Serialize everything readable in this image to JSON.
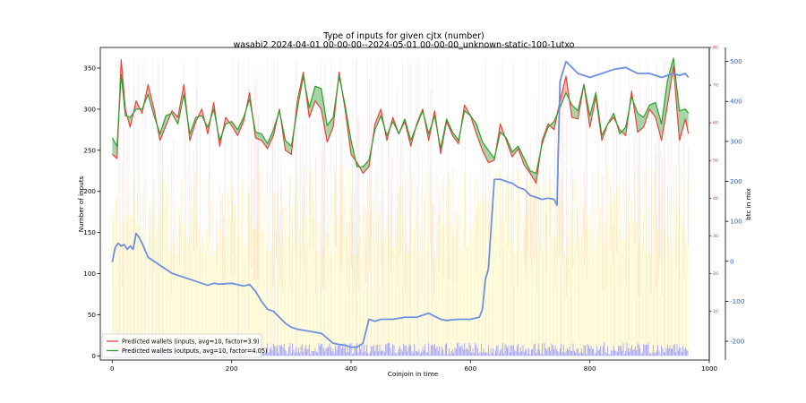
{
  "chart_data": {
    "type": "line",
    "title": "Type of inputs for given cjtx (number)",
    "subtitle": "wasabi2 2024-04-01 00-00-00--2024-05-01 00-00-00_unknown-static-100-1utxo",
    "xlabel": "Coinjoin in time",
    "ylabel": "Number of inputs",
    "ylabel_right": "btc in mix",
    "xlim": [
      -20,
      1000
    ],
    "ylim": [
      -5,
      375
    ],
    "ylim_right_btc": [
      -247,
      535
    ],
    "ylim_right_red": [
      -3,
      80
    ],
    "x_ticks": [
      0,
      200,
      400,
      600,
      800,
      1000
    ],
    "y_ticks": [
      0,
      50,
      100,
      150,
      200,
      250,
      300,
      350
    ],
    "y_right_btc_ticks": [
      -200,
      -100,
      0,
      100,
      200,
      300,
      400,
      500
    ],
    "y_right_red_ticks": [
      10,
      20,
      30,
      40,
      50,
      60,
      70,
      80
    ],
    "grid": false,
    "legend_position": "lower-left",
    "colors": {
      "inputs": "#e8453c",
      "outputs": "#2ca02c",
      "fill_inputs": "#f08080",
      "fill_outputs": "#5fb35f",
      "btc": "#6f8fdf",
      "btc_axis": "#3060d0",
      "red_axis": "#e03030",
      "background_bars": "#fff3a8",
      "low_bars": "#8080ff"
    },
    "series": [
      {
        "name": "Predicted wallets (inputs, avg=10, factor=3.9)",
        "x": [
          0,
          8,
          15,
          22,
          30,
          40,
          50,
          60,
          70,
          80,
          90,
          100,
          110,
          120,
          130,
          140,
          150,
          160,
          170,
          180,
          190,
          200,
          210,
          220,
          230,
          240,
          250,
          260,
          270,
          280,
          290,
          300,
          310,
          320,
          330,
          340,
          350,
          360,
          370,
          380,
          390,
          400,
          410,
          420,
          430,
          440,
          450,
          460,
          470,
          480,
          490,
          500,
          510,
          520,
          530,
          540,
          550,
          560,
          570,
          580,
          590,
          600,
          610,
          620,
          630,
          640,
          650,
          660,
          670,
          680,
          690,
          700,
          710,
          720,
          730,
          740,
          750,
          760,
          770,
          780,
          790,
          800,
          810,
          820,
          830,
          840,
          850,
          860,
          870,
          880,
          890,
          900,
          910,
          920,
          930,
          940,
          950,
          960,
          965
        ],
        "values": [
          245,
          240,
          360,
          300,
          278,
          310,
          295,
          330,
          300,
          262,
          280,
          298,
          290,
          330,
          262,
          285,
          300,
          270,
          308,
          255,
          290,
          280,
          268,
          285,
          320,
          265,
          262,
          252,
          268,
          300,
          250,
          245,
          310,
          345,
          290,
          310,
          300,
          260,
          278,
          345,
          300,
          245,
          235,
          222,
          230,
          282,
          300,
          262,
          290,
          270,
          285,
          255,
          282,
          300,
          262,
          298,
          246,
          285,
          268,
          258,
          305,
          292,
          270,
          250,
          235,
          238,
          282,
          262,
          242,
          252,
          232,
          222,
          210,
          262,
          282,
          275,
          310,
          340,
          290,
          288,
          330,
          278,
          315,
          262,
          282,
          290,
          275,
          268,
          322,
          272,
          278,
          300,
          290,
          262,
          305,
          352,
          262,
          288,
          270
        ]
      },
      {
        "name": "Predicted wallets (outputs, avg=10, factor=4.05)",
        "x": [
          0,
          8,
          15,
          22,
          30,
          40,
          50,
          60,
          70,
          80,
          90,
          100,
          110,
          120,
          130,
          140,
          150,
          160,
          170,
          180,
          190,
          200,
          210,
          220,
          230,
          240,
          250,
          260,
          270,
          280,
          290,
          300,
          310,
          320,
          330,
          340,
          350,
          360,
          370,
          380,
          390,
          400,
          410,
          420,
          430,
          440,
          450,
          460,
          470,
          480,
          490,
          500,
          510,
          520,
          530,
          540,
          550,
          560,
          570,
          580,
          590,
          600,
          610,
          620,
          630,
          640,
          650,
          660,
          670,
          680,
          690,
          700,
          710,
          720,
          730,
          740,
          750,
          760,
          770,
          780,
          790,
          800,
          810,
          820,
          830,
          840,
          850,
          860,
          870,
          880,
          890,
          900,
          910,
          920,
          930,
          940,
          950,
          960,
          965
        ],
        "values": [
          265,
          255,
          342,
          292,
          290,
          300,
          300,
          318,
          292,
          270,
          292,
          295,
          282,
          318,
          270,
          290,
          292,
          278,
          300,
          262,
          282,
          285,
          275,
          290,
          312,
          272,
          270,
          258,
          275,
          298,
          262,
          255,
          300,
          340,
          302,
          328,
          325,
          280,
          290,
          340,
          305,
          262,
          230,
          230,
          238,
          275,
          292,
          268,
          285,
          270,
          288,
          262,
          280,
          298,
          270,
          292,
          252,
          288,
          272,
          262,
          298,
          292,
          282,
          260,
          250,
          240,
          272,
          265,
          248,
          255,
          240,
          225,
          222,
          258,
          278,
          285,
          302,
          320,
          305,
          298,
          330,
          292,
          320,
          268,
          282,
          295,
          270,
          278,
          315,
          295,
          290,
          305,
          308,
          282,
          335,
          362,
          298,
          300,
          295
        ]
      },
      {
        "name": "btc in mix",
        "axis": "right",
        "x": [
          0,
          5,
          10,
          15,
          20,
          25,
          30,
          35,
          40,
          45,
          50,
          60,
          80,
          100,
          120,
          140,
          160,
          170,
          180,
          200,
          220,
          230,
          240,
          250,
          260,
          270,
          280,
          290,
          300,
          310,
          330,
          350,
          370,
          380,
          390,
          400,
          410,
          420,
          430,
          440,
          450,
          470,
          490,
          510,
          530,
          550,
          560,
          580,
          600,
          615,
          620,
          625,
          630,
          640,
          650,
          660,
          670,
          680,
          690,
          700,
          710,
          720,
          730,
          740,
          745,
          750,
          760,
          770,
          780,
          800,
          820,
          840,
          860,
          880,
          900,
          920,
          940,
          950,
          960,
          965
        ],
        "values": [
          -2,
          35,
          45,
          38,
          42,
          30,
          38,
          30,
          70,
          60,
          45,
          10,
          -10,
          -30,
          -40,
          -50,
          -60,
          -55,
          -57,
          -55,
          -62,
          -58,
          -75,
          -100,
          -120,
          -125,
          -140,
          -155,
          -165,
          -170,
          -175,
          -180,
          -205,
          -208,
          -210,
          -215,
          -215,
          -205,
          -145,
          -150,
          -145,
          -145,
          -140,
          -140,
          -130,
          -145,
          -148,
          -145,
          -145,
          -140,
          -120,
          -45,
          -20,
          205,
          205,
          200,
          195,
          185,
          180,
          165,
          160,
          155,
          158,
          155,
          140,
          450,
          500,
          485,
          470,
          460,
          470,
          480,
          485,
          470,
          470,
          460,
          470,
          465,
          470,
          460
        ]
      }
    ]
  }
}
